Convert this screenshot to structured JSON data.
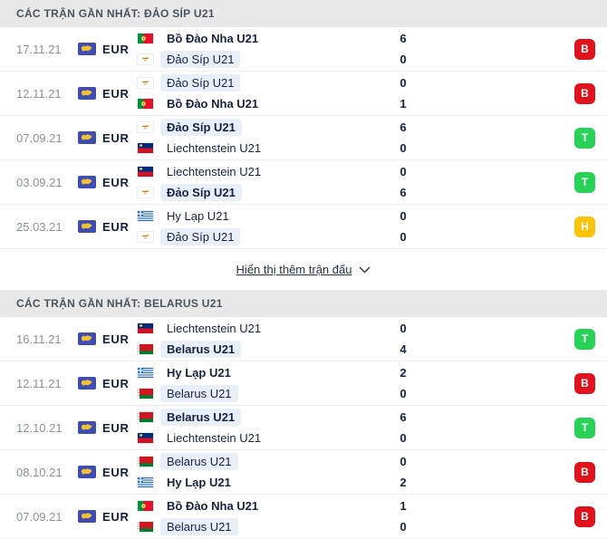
{
  "colors": {
    "red": "#e0121b",
    "green": "#27d256",
    "yellow": "#fcc30b",
    "highlight": "#e9eff9",
    "header_bg": "#e8e8e8"
  },
  "sections": [
    {
      "title": "CÁC TRẬN GẦN NHẤT: ĐẢO SÍP U21",
      "show_more_label": "Hiển thị thêm trận đấu",
      "matches": [
        {
          "date": "17.11.21",
          "league": "EUR",
          "home": {
            "name": "Bồ Đào Nha U21",
            "flag": "portugal",
            "winner": true,
            "highlight": false
          },
          "away": {
            "name": "Đảo Síp U21",
            "flag": "cyprus",
            "winner": false,
            "highlight": true
          },
          "home_score": "6",
          "away_score": "0",
          "result": {
            "label": "B",
            "color": "red"
          }
        },
        {
          "date": "12.11.21",
          "league": "EUR",
          "home": {
            "name": "Đảo Síp U21",
            "flag": "cyprus",
            "winner": false,
            "highlight": true
          },
          "away": {
            "name": "Bồ Đào Nha U21",
            "flag": "portugal",
            "winner": true,
            "highlight": false
          },
          "home_score": "0",
          "away_score": "1",
          "result": {
            "label": "B",
            "color": "red"
          }
        },
        {
          "date": "07.09.21",
          "league": "EUR",
          "home": {
            "name": "Đảo Síp U21",
            "flag": "cyprus",
            "winner": true,
            "highlight": true
          },
          "away": {
            "name": "Liechtenstein U21",
            "flag": "liechtenstein",
            "winner": false,
            "highlight": false
          },
          "home_score": "6",
          "away_score": "0",
          "result": {
            "label": "T",
            "color": "green"
          }
        },
        {
          "date": "03.09.21",
          "league": "EUR",
          "home": {
            "name": "Liechtenstein U21",
            "flag": "liechtenstein",
            "winner": false,
            "highlight": false
          },
          "away": {
            "name": "Đảo Síp U21",
            "flag": "cyprus",
            "winner": true,
            "highlight": true
          },
          "home_score": "0",
          "away_score": "6",
          "result": {
            "label": "T",
            "color": "green"
          }
        },
        {
          "date": "25.03.21",
          "league": "EUR",
          "home": {
            "name": "Hy Lạp U21",
            "flag": "greece",
            "winner": false,
            "highlight": false
          },
          "away": {
            "name": "Đảo Síp U21",
            "flag": "cyprus",
            "winner": false,
            "highlight": true
          },
          "home_score": "0",
          "away_score": "0",
          "result": {
            "label": "H",
            "color": "yellow"
          }
        }
      ]
    },
    {
      "title": "CÁC TRẬN GẦN NHẤT: BELARUS U21",
      "show_more_label": null,
      "matches": [
        {
          "date": "16.11.21",
          "league": "EUR",
          "home": {
            "name": "Liechtenstein U21",
            "flag": "liechtenstein",
            "winner": false,
            "highlight": false
          },
          "away": {
            "name": "Belarus U21",
            "flag": "belarus",
            "winner": true,
            "highlight": true
          },
          "home_score": "0",
          "away_score": "4",
          "result": {
            "label": "T",
            "color": "green"
          }
        },
        {
          "date": "12.11.21",
          "league": "EUR",
          "home": {
            "name": "Hy Lạp U21",
            "flag": "greece",
            "winner": true,
            "highlight": false
          },
          "away": {
            "name": "Belarus U21",
            "flag": "belarus",
            "winner": false,
            "highlight": true
          },
          "home_score": "2",
          "away_score": "0",
          "result": {
            "label": "B",
            "color": "red"
          }
        },
        {
          "date": "12.10.21",
          "league": "EUR",
          "home": {
            "name": "Belarus U21",
            "flag": "belarus",
            "winner": true,
            "highlight": true
          },
          "away": {
            "name": "Liechtenstein U21",
            "flag": "liechtenstein",
            "winner": false,
            "highlight": false
          },
          "home_score": "6",
          "away_score": "0",
          "result": {
            "label": "T",
            "color": "green"
          }
        },
        {
          "date": "08.10.21",
          "league": "EUR",
          "home": {
            "name": "Belarus U21",
            "flag": "belarus",
            "winner": false,
            "highlight": true
          },
          "away": {
            "name": "Hy Lạp U21",
            "flag": "greece",
            "winner": true,
            "highlight": false
          },
          "home_score": "0",
          "away_score": "2",
          "result": {
            "label": "B",
            "color": "red"
          }
        },
        {
          "date": "07.09.21",
          "league": "EUR",
          "home": {
            "name": "Bồ Đào Nha U21",
            "flag": "portugal",
            "winner": true,
            "highlight": false
          },
          "away": {
            "name": "Belarus U21",
            "flag": "belarus",
            "winner": false,
            "highlight": true
          },
          "home_score": "1",
          "away_score": "0",
          "result": {
            "label": "B",
            "color": "red"
          }
        }
      ]
    }
  ]
}
